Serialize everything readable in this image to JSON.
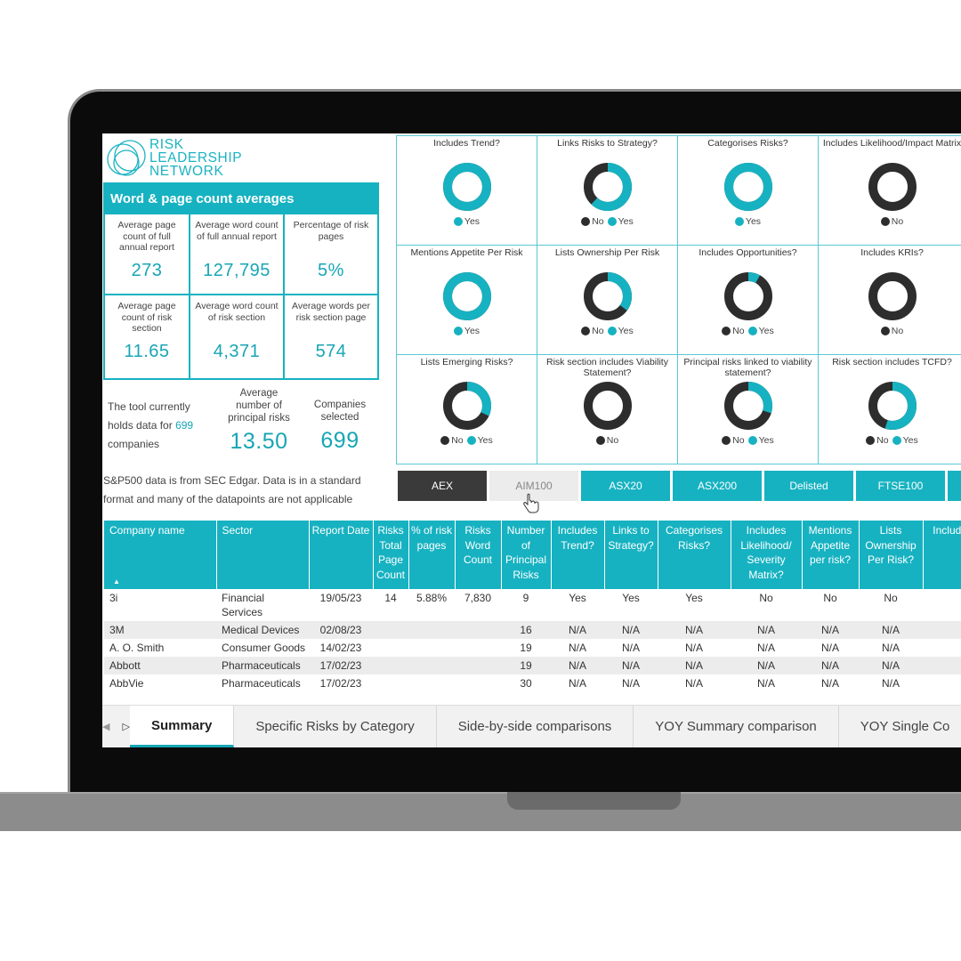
{
  "logo": {
    "line1": "RISK",
    "line2": "LEADERSHIP",
    "line3": "NETWORK"
  },
  "word_page": {
    "title": "Word & page count averages",
    "cells": [
      {
        "label": "Average page count of full annual report",
        "value": "273"
      },
      {
        "label": "Average word count of full annual report",
        "value": "127,795"
      },
      {
        "label": "Percentage of risk pages",
        "value": "5%"
      },
      {
        "label": "Average page count of risk section",
        "value": "11.65"
      },
      {
        "label": "Average word count of risk section",
        "value": "4,371"
      },
      {
        "label": "Average words per risk section page",
        "value": "574"
      }
    ]
  },
  "tool": {
    "text_before": "The tool currently holds data for ",
    "count": "699",
    "text_after": " companies"
  },
  "avg_principal": {
    "label": "Average number of principal risks",
    "value": "13.50"
  },
  "companies_selected": {
    "label": "Companies selected",
    "value": "699"
  },
  "sp_note": "S&P500 data is from SEC Edgar. Data is in a standard format and many of the datapoints are not applicable",
  "legend": {
    "no": "No",
    "yes": "Yes"
  },
  "donuts": [
    {
      "title": "Includes Trend?",
      "yes_fraction": 1.0,
      "legend": [
        "yes"
      ]
    },
    {
      "title": "Links Risks to Strategy?",
      "yes_fraction": 0.62,
      "legend": [
        "no",
        "yes"
      ]
    },
    {
      "title": "Categorises Risks?",
      "yes_fraction": 1.0,
      "legend": [
        "yes"
      ]
    },
    {
      "title": "Includes Likelihood/Impact Matrix",
      "yes_fraction": 0.0,
      "legend": [
        "no"
      ]
    },
    {
      "title": "Mentions Appetite Per Risk",
      "yes_fraction": 1.0,
      "legend": [
        "yes"
      ]
    },
    {
      "title": "Lists Ownership Per Risk",
      "yes_fraction": 0.35,
      "legend": [
        "no",
        "yes"
      ]
    },
    {
      "title": "Includes Opportunities?",
      "yes_fraction": 0.08,
      "legend": [
        "no",
        "yes"
      ]
    },
    {
      "title": "Includes KRIs?",
      "yes_fraction": 0.0,
      "legend": [
        "no"
      ]
    },
    {
      "title": "Lists Emerging Risks?",
      "yes_fraction": 0.32,
      "legend": [
        "no",
        "yes"
      ]
    },
    {
      "title": "Risk section includes Viability Statement?",
      "yes_fraction": 0.0,
      "legend": [
        "no"
      ]
    },
    {
      "title": "Principal risks linked to viability statement?",
      "yes_fraction": 0.3,
      "legend": [
        "no",
        "yes"
      ]
    },
    {
      "title": "Risk section includes TCFD?",
      "yes_fraction": 0.55,
      "legend": [
        "no",
        "yes"
      ]
    }
  ],
  "index_tabs": [
    "AEX",
    "AIM100",
    "ASX20",
    "ASX200",
    "Delisted",
    "FTSE100"
  ],
  "table": {
    "headers": [
      "Company name",
      "Sector",
      "Report Date",
      "Risks Total Page Count",
      "% of risk pages",
      "Risks Word Count",
      "Number of Principal Risks",
      "Includes Trend?",
      "Links to Strategy?",
      "Categorises Risks?",
      "Includes Likelihood/ Severity Matrix?",
      "Mentions Appetite per risk?",
      "Lists Ownership Per Risk?",
      "Includes Oppo"
    ],
    "rows": [
      [
        "3i",
        "Financial Services",
        "19/05/23",
        "14",
        "5.88%",
        "7,830",
        "9",
        "Yes",
        "Yes",
        "Yes",
        "No",
        "No",
        "No",
        ""
      ],
      [
        "3M",
        "Medical Devices",
        "02/08/23",
        "",
        "",
        "",
        "16",
        "N/A",
        "N/A",
        "N/A",
        "N/A",
        "N/A",
        "N/A",
        ""
      ],
      [
        "A. O. Smith",
        "Consumer Goods",
        "14/02/23",
        "",
        "",
        "",
        "19",
        "N/A",
        "N/A",
        "N/A",
        "N/A",
        "N/A",
        "N/A",
        ""
      ],
      [
        "Abbott",
        "Pharmaceuticals",
        "17/02/23",
        "",
        "",
        "",
        "19",
        "N/A",
        "N/A",
        "N/A",
        "N/A",
        "N/A",
        "N/A",
        ""
      ],
      [
        "AbbVie",
        "Pharmaceuticals",
        "17/02/23",
        "",
        "",
        "",
        "30",
        "N/A",
        "N/A",
        "N/A",
        "N/A",
        "N/A",
        "N/A",
        ""
      ]
    ]
  },
  "page_tabs": [
    "Summary",
    "Specific Risks by Category",
    "Side-by-side comparisons",
    "YOY Summary comparison",
    "YOY Single Co"
  ],
  "colors": {
    "teal": "#17b2c1",
    "dark": "#2d2d2d"
  }
}
